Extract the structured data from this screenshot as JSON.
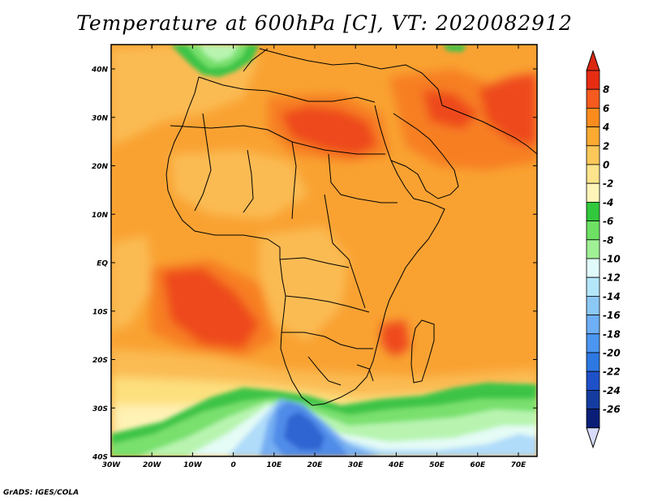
{
  "title": "Temperature at 600hPa [C], VT: 2020082912",
  "lat_ticks": [
    "40N",
    "30N",
    "20N",
    "10N",
    "EQ",
    "10S",
    "20S",
    "30S",
    "40S"
  ],
  "lon_ticks": [
    "30W",
    "20W",
    "10W",
    "0",
    "10E",
    "20E",
    "30E",
    "40E",
    "50E",
    "60E",
    "70E"
  ],
  "colorbar": {
    "labels": [
      "8",
      "6",
      "4",
      "2",
      "0",
      "-2",
      "-4",
      "-6",
      "-8",
      "-10",
      "-12",
      "-14",
      "-16",
      "-18",
      "-20",
      "-22",
      "-24",
      "-26"
    ],
    "colors": [
      "#e62d14",
      "#f55a1e",
      "#fa8c1e",
      "#fcaa32",
      "#fcc85a",
      "#fce48c",
      "#fff5b9",
      "#32c83c",
      "#6ee164",
      "#a0f096",
      "#e1fafa",
      "#b4e6fa",
      "#8cc8f5",
      "#6eaff5",
      "#4b96f0",
      "#2d78e1",
      "#1e50c8",
      "#143ca0",
      "#0a1e78"
    ],
    "top_triangle_color": "#dc2810",
    "bottom_triangle_color": "#d8dcfa"
  },
  "map_colors": {
    "base": "#f9a232",
    "warm_orange": "#f77f22",
    "hot_red": "#ee4a1e",
    "light_orange": "#fbbb52",
    "pale_yellow": "#fde07e",
    "cream": "#fff2b5",
    "green": "#3ec447",
    "light_green": "#79e06e",
    "pale_green": "#b8f4b0",
    "very_pale": "#e4fbf6",
    "light_blue": "#b0dcf9",
    "mid_blue": "#75aef2",
    "blue": "#4f8be8",
    "deep_blue": "#2f65d2"
  },
  "footer": "GrADS: IGES/COLA"
}
